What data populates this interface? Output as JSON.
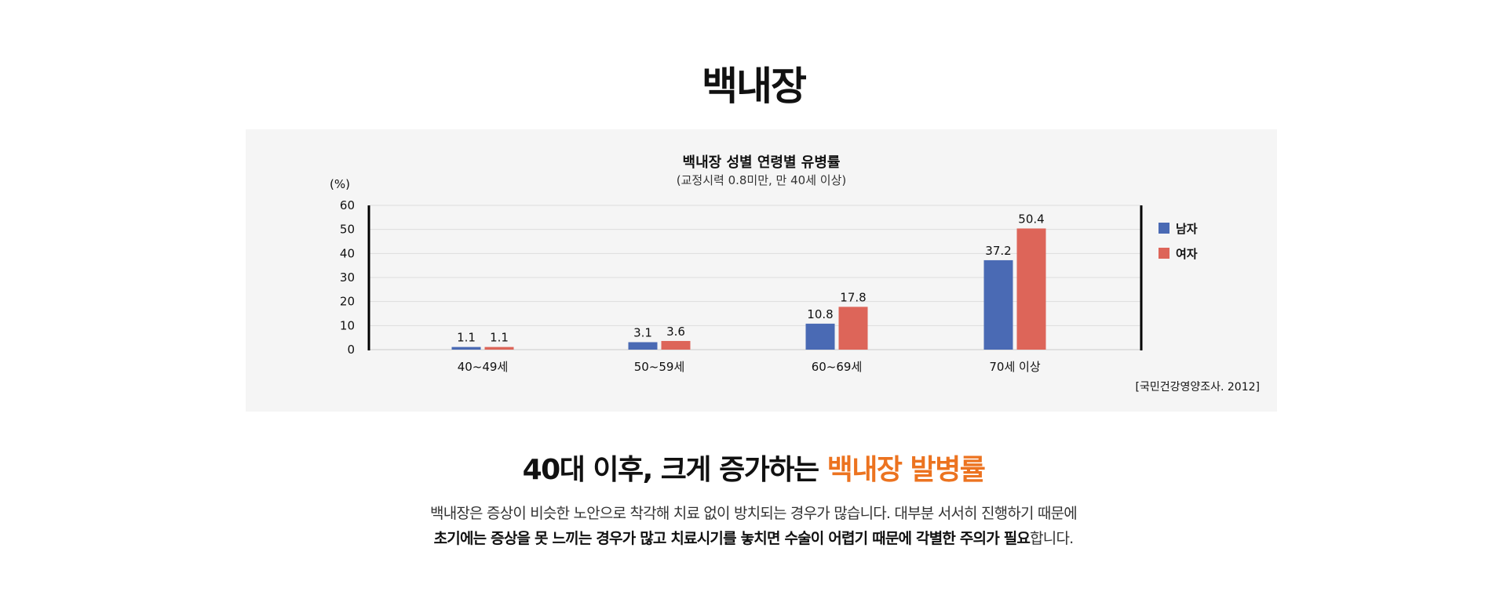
{
  "page": {
    "title": "백내장",
    "headline_plain": "40대 이후, 크게 증가하는 ",
    "headline_accent": "백내장 발병률",
    "desc_line1": "백내장은 증상이 비슷한 노안으로 착각해 치료 없이 방치되는 경우가 많습니다. 대부분 서서히 진행하기 때문에",
    "desc_line2_bold": "초기에는 증상을 못 느끼는 경우가 많고 치료시기를 놓치면 수술이 어렵기 때문에 각별한 주의가 필요",
    "desc_line2_rest": "합니다.",
    "accent_color": "#ec7320"
  },
  "chart_data": {
    "type": "bar",
    "title": "백내장 성별 연령별 유병률",
    "subtitle": "(교정시력 0.8미만, 만 40세 이상)",
    "ylabel": "(%)",
    "source": "[국민건강영양조사. 2012]",
    "ylim": [
      0,
      60
    ],
    "yticks": [
      "0",
      "10",
      "20",
      "30",
      "40",
      "50",
      "60"
    ],
    "categories": [
      "40~49세",
      "50~59세",
      "60~69세",
      "70세 이상"
    ],
    "series": [
      {
        "name": "남자",
        "color": "#4a6ab4",
        "values": [
          1.1,
          3.1,
          10.8,
          37.2
        ],
        "labels": [
          "1.1",
          "3.1",
          "10.8",
          "37.2"
        ]
      },
      {
        "name": "여자",
        "color": "#dd6559",
        "values": [
          1.1,
          3.6,
          17.8,
          50.4
        ],
        "labels": [
          "1.1",
          "3.6",
          "17.8",
          "50.4"
        ]
      }
    ],
    "grid": true,
    "legend": "right"
  }
}
